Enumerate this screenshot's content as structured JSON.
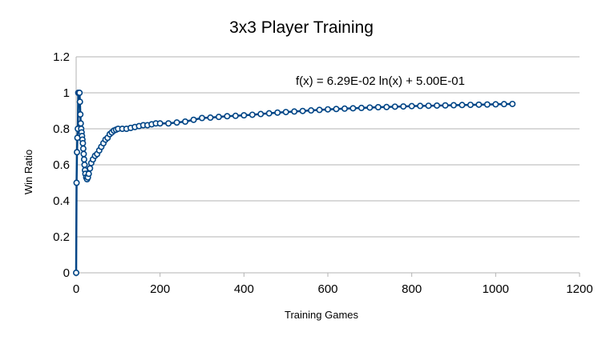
{
  "chart_data": {
    "type": "scatter",
    "title": "3x3 Player Training",
    "xlabel": "Training Games",
    "ylabel": "Win Ratio",
    "xlim": [
      0,
      1200
    ],
    "ylim": [
      0,
      1.2
    ],
    "x_ticks": [
      "0",
      "200",
      "400",
      "600",
      "800",
      "1000",
      "1200"
    ],
    "y_ticks": [
      "0",
      "0.2",
      "0.4",
      "0.6",
      "0.8",
      "1",
      "1.2"
    ],
    "grid": "horizontal",
    "legend": "none",
    "trendline_label": "f(x) = 6.29E-02 ln(x) + 5.00E-01",
    "series_color": "#004586",
    "series": [
      {
        "points": [
          [
            0,
            0
          ],
          [
            1,
            0.5
          ],
          [
            2,
            0.67
          ],
          [
            3,
            0.75
          ],
          [
            4,
            0.8
          ],
          [
            5,
            1.0
          ],
          [
            6,
            1.0
          ],
          [
            7,
            1.0
          ],
          [
            8,
            1.0
          ],
          [
            9,
            0.95
          ],
          [
            10,
            0.88
          ],
          [
            11,
            0.83
          ],
          [
            12,
            0.8
          ],
          [
            13,
            0.78
          ],
          [
            14,
            0.76
          ],
          [
            15,
            0.74
          ],
          [
            16,
            0.72
          ],
          [
            17,
            0.69
          ],
          [
            18,
            0.66
          ],
          [
            19,
            0.63
          ],
          [
            20,
            0.6
          ],
          [
            21,
            0.57
          ],
          [
            22,
            0.55
          ],
          [
            24,
            0.53
          ],
          [
            26,
            0.52
          ],
          [
            28,
            0.53
          ],
          [
            30,
            0.55
          ],
          [
            33,
            0.58
          ],
          [
            36,
            0.61
          ],
          [
            40,
            0.63
          ],
          [
            45,
            0.65
          ],
          [
            50,
            0.66
          ],
          [
            55,
            0.68
          ],
          [
            60,
            0.7
          ],
          [
            65,
            0.72
          ],
          [
            70,
            0.74
          ],
          [
            75,
            0.75
          ],
          [
            80,
            0.77
          ],
          [
            85,
            0.78
          ],
          [
            90,
            0.79
          ],
          [
            95,
            0.795
          ],
          [
            100,
            0.8
          ],
          [
            110,
            0.8
          ],
          [
            120,
            0.8
          ],
          [
            130,
            0.805
          ],
          [
            140,
            0.81
          ],
          [
            150,
            0.815
          ],
          [
            160,
            0.82
          ],
          [
            170,
            0.82
          ],
          [
            180,
            0.825
          ],
          [
            190,
            0.83
          ],
          [
            200,
            0.83
          ],
          [
            220,
            0.83
          ],
          [
            240,
            0.835
          ],
          [
            260,
            0.84
          ],
          [
            280,
            0.85
          ],
          [
            300,
            0.86
          ],
          [
            320,
            0.862
          ],
          [
            340,
            0.866
          ],
          [
            360,
            0.87
          ],
          [
            380,
            0.872
          ],
          [
            400,
            0.875
          ],
          [
            420,
            0.878
          ],
          [
            440,
            0.882
          ],
          [
            460,
            0.886
          ],
          [
            480,
            0.89
          ],
          [
            500,
            0.893
          ],
          [
            520,
            0.896
          ],
          [
            540,
            0.899
          ],
          [
            560,
            0.902
          ],
          [
            580,
            0.905
          ],
          [
            600,
            0.908
          ],
          [
            620,
            0.91
          ],
          [
            640,
            0.912
          ],
          [
            660,
            0.914
          ],
          [
            680,
            0.916
          ],
          [
            700,
            0.918
          ],
          [
            720,
            0.92
          ],
          [
            740,
            0.921
          ],
          [
            760,
            0.923
          ],
          [
            780,
            0.924
          ],
          [
            800,
            0.926
          ],
          [
            820,
            0.927
          ],
          [
            840,
            0.928
          ],
          [
            860,
            0.929
          ],
          [
            880,
            0.93
          ],
          [
            900,
            0.931
          ],
          [
            920,
            0.932
          ],
          [
            940,
            0.933
          ],
          [
            960,
            0.934
          ],
          [
            980,
            0.935
          ],
          [
            1000,
            0.936
          ],
          [
            1020,
            0.937
          ],
          [
            1040,
            0.938
          ]
        ]
      }
    ]
  }
}
